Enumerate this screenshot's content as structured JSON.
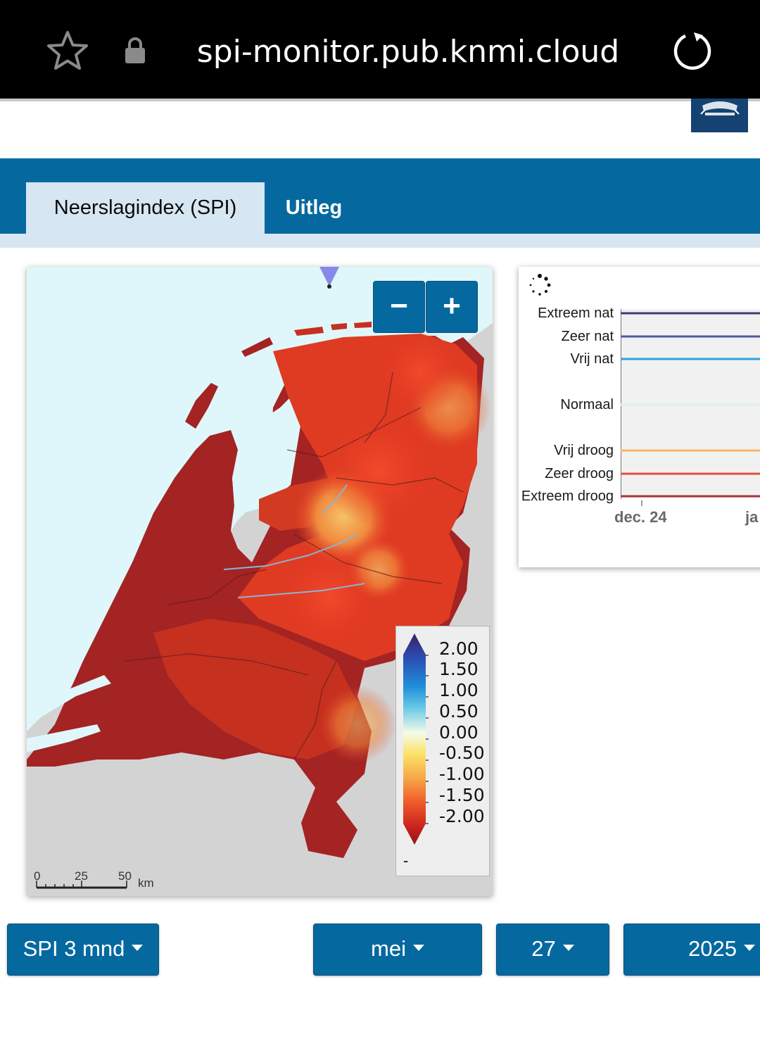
{
  "browser": {
    "url": "spi-monitor.pub.knmi.cloud",
    "icons": [
      "star-icon",
      "lock-icon",
      "reload-icon"
    ]
  },
  "tabs": [
    {
      "label": "Neerslagindex (SPI)",
      "active": true
    },
    {
      "label": "Uitleg",
      "active": false
    }
  ],
  "map": {
    "zoom_out_label": "−",
    "zoom_in_label": "+",
    "legend_ticks": [
      "2.00",
      "1.50",
      "1.00",
      "0.50",
      "0.00",
      "-0.50",
      "-1.00",
      "-1.50",
      "-2.00"
    ],
    "legend_nodata": "-",
    "scale_labels": [
      "0",
      "25",
      "50"
    ],
    "scale_unit": "km",
    "colors": {
      "extreme_dry": "#8b1a1a",
      "dry": "#e0321e",
      "moderate": "#f7a34b",
      "water": "#dff7fb",
      "land_outside": "#d3d3d3"
    }
  },
  "chart": {
    "categories": [
      "Extreem nat",
      "Zeer nat",
      "Vrij nat",
      "Normaal",
      "Vrij droog",
      "Zeer droog",
      "Extreem droog"
    ],
    "category_colors": [
      "#3c3b7a",
      "#4a5aa8",
      "#29a3dc",
      "#d9f1ef",
      "#f7b565",
      "#e0503a",
      "#a8343c"
    ],
    "x_ticks": [
      "dec. 24",
      "ja"
    ]
  },
  "controls": {
    "index_select": "SPI 3 mnd",
    "month_select": "mei",
    "day_select": "27",
    "year_select": "2025"
  }
}
